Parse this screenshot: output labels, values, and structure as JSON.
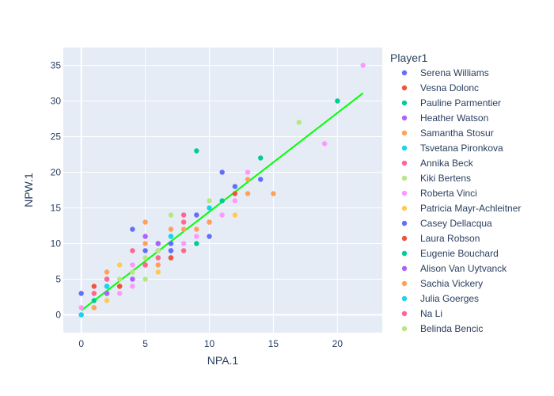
{
  "chart_data": {
    "type": "scatter",
    "xlabel": "NPA.1",
    "ylabel": "NPW.1",
    "xlim": [
      -1.4,
      23.5
    ],
    "ylim": [
      -2.5,
      37.5
    ],
    "x_ticks": [
      0,
      5,
      10,
      15,
      20
    ],
    "y_ticks": [
      0,
      5,
      10,
      15,
      20,
      25,
      30,
      35
    ],
    "grid": true,
    "legend_title": "Player1",
    "legend_placement": "right",
    "trendline": {
      "x": [
        0,
        22
      ],
      "y": [
        0.6,
        31.1
      ],
      "color": "#00ff00"
    },
    "series": [
      {
        "name": "Serena Williams",
        "color": "#636efa",
        "points": [
          [
            0,
            3
          ],
          [
            4,
            12
          ],
          [
            5,
            9
          ],
          [
            6,
            9
          ],
          [
            6,
            10
          ],
          [
            7,
            9
          ],
          [
            9,
            14
          ],
          [
            10,
            11
          ],
          [
            11,
            20
          ],
          [
            12,
            18
          ],
          [
            14,
            19
          ]
        ]
      },
      {
        "name": "Vesna Dolonc",
        "color": "#EF553B",
        "points": [
          [
            1,
            4
          ],
          [
            3,
            4
          ],
          [
            7,
            8
          ],
          [
            12,
            17
          ]
        ]
      },
      {
        "name": "Pauline Parmentier",
        "color": "#00cc96",
        "points": [
          [
            0,
            0
          ],
          [
            2,
            4
          ],
          [
            9,
            10
          ],
          [
            9,
            23
          ],
          [
            11,
            16
          ],
          [
            14,
            22
          ],
          [
            20,
            30
          ]
        ]
      },
      {
        "name": "Heather Watson",
        "color": "#ab63fa",
        "points": [
          [
            2,
            3
          ],
          [
            4,
            5
          ],
          [
            5,
            11
          ]
        ]
      },
      {
        "name": "Samantha Stosur",
        "color": "#FFA15A",
        "points": [
          [
            1,
            1
          ],
          [
            2,
            6
          ],
          [
            5,
            13
          ],
          [
            6,
            7
          ],
          [
            7,
            12
          ],
          [
            8,
            12
          ],
          [
            13,
            17
          ],
          [
            13,
            19
          ],
          [
            15,
            17
          ]
        ]
      },
      {
        "name": "Tsvetana Pironkova",
        "color": "#19d3f3",
        "points": [
          [
            0,
            0
          ],
          [
            7,
            11
          ],
          [
            10,
            15
          ]
        ]
      },
      {
        "name": "Annika Beck",
        "color": "#FF6692",
        "points": [
          [
            1,
            3
          ],
          [
            2,
            5
          ],
          [
            4,
            9
          ],
          [
            6,
            8
          ],
          [
            8,
            9
          ],
          [
            8,
            13
          ],
          [
            8,
            14
          ],
          [
            10,
            13
          ]
        ]
      },
      {
        "name": "Kiki Bertens",
        "color": "#B6E880",
        "points": [
          [
            3,
            5
          ],
          [
            5,
            5
          ],
          [
            7,
            14
          ],
          [
            10,
            16
          ],
          [
            17,
            27
          ]
        ]
      },
      {
        "name": "Roberta Vinci",
        "color": "#FF97FF",
        "points": [
          [
            0,
            1
          ],
          [
            3,
            3
          ],
          [
            4,
            4
          ],
          [
            4,
            7
          ],
          [
            8,
            10
          ],
          [
            9,
            11
          ],
          [
            11,
            14
          ],
          [
            12,
            16
          ],
          [
            13,
            20
          ],
          [
            19,
            24
          ],
          [
            22,
            35
          ]
        ]
      },
      {
        "name": "Patricia Mayr-Achleitner",
        "color": "#FECB52",
        "points": [
          [
            2,
            2
          ],
          [
            3,
            7
          ],
          [
            6,
            6
          ],
          [
            12,
            14
          ]
        ]
      },
      {
        "name": "Casey Dellacqua",
        "color": "#636efa",
        "points": [
          [
            7,
            9
          ],
          [
            7,
            10
          ]
        ]
      },
      {
        "name": "Laura Robson",
        "color": "#EF553B",
        "points": [
          [
            3,
            4
          ],
          [
            5,
            7
          ],
          [
            7,
            8
          ]
        ]
      },
      {
        "name": "Eugenie Bouchard",
        "color": "#00cc96",
        "points": [
          [
            1,
            2
          ]
        ]
      },
      {
        "name": "Alison Van Uytvanck",
        "color": "#ab63fa",
        "points": [
          [
            2,
            3
          ],
          [
            6,
            10
          ]
        ]
      },
      {
        "name": "Sachia Vickery",
        "color": "#FFA15A",
        "points": [
          [
            5,
            10
          ],
          [
            9,
            12
          ],
          [
            10,
            13
          ]
        ]
      },
      {
        "name": "Julia Goerges",
        "color": "#19d3f3",
        "points": [
          [
            2,
            4
          ],
          [
            7,
            11
          ]
        ]
      },
      {
        "name": "Na Li",
        "color": "#FF6692",
        "points": [
          [
            2,
            5
          ],
          [
            5,
            7
          ],
          [
            6,
            8
          ]
        ]
      },
      {
        "name": "Belinda Bencic",
        "color": "#B6E880",
        "points": [
          [
            4,
            6
          ],
          [
            5,
            8
          ],
          [
            6,
            9
          ]
        ]
      }
    ]
  }
}
